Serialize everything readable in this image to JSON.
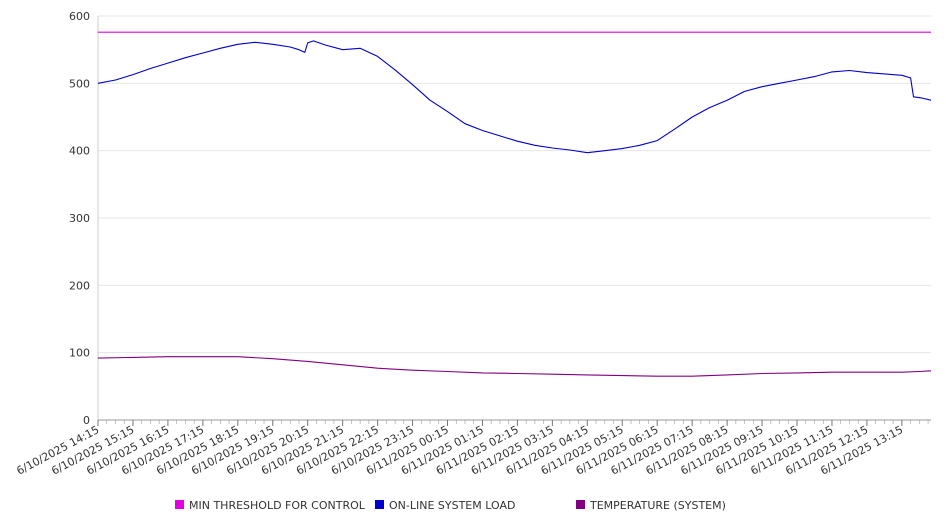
{
  "chart_data": {
    "type": "line",
    "title": "",
    "xlabel": "",
    "ylabel": "",
    "ylim": [
      0,
      600
    ],
    "yticks": [
      "0",
      "100",
      "200",
      "300",
      "400",
      "500",
      "600"
    ],
    "grid": true,
    "legend_position": "bottom",
    "xtick_labels": [
      "6/10/2025 14:15",
      "6/10/2025 15:15",
      "6/10/2025 16:15",
      "6/10/2025 17:15",
      "6/10/2025 18:15",
      "6/10/2025 19:15",
      "6/10/2025 20:15",
      "6/10/2025 21:15",
      "6/10/2025 22:15",
      "6/10/2025 23:15",
      "6/11/2025 00:15",
      "6/11/2025 01:15",
      "6/11/2025 02:15",
      "6/11/2025 03:15",
      "6/11/2025 04:15",
      "6/11/2025 05:15",
      "6/11/2025 06:15",
      "6/11/2025 07:15",
      "6/11/2025 08:15",
      "6/11/2025 09:15",
      "6/11/2025 10:15",
      "6/11/2025 11:15",
      "6/11/2025 12:15",
      "6/11/2025 13:15"
    ],
    "xlim": [
      "6/10/2025 14:15",
      "6/11/2025 14:05"
    ],
    "series": [
      {
        "name": "MIN THRESHOLD FOR CONTROL",
        "color": "#e000e0",
        "points": [
          [
            "6/10/2025 14:15",
            576
          ],
          [
            "6/11/2025 14:05",
            576
          ]
        ]
      },
      {
        "name": "ON-LINE SYSTEM LOAD",
        "color": "#0000cc",
        "points": [
          [
            "6/10/2025 14:15",
            500
          ],
          [
            "6/10/2025 14:45",
            505
          ],
          [
            "6/10/2025 15:15",
            513
          ],
          [
            "6/10/2025 15:45",
            522
          ],
          [
            "6/10/2025 16:15",
            530
          ],
          [
            "6/10/2025 16:45",
            538
          ],
          [
            "6/10/2025 17:15",
            545
          ],
          [
            "6/10/2025 17:45",
            552
          ],
          [
            "6/10/2025 18:15",
            558
          ],
          [
            "6/10/2025 18:45",
            561
          ],
          [
            "6/10/2025 19:15",
            558
          ],
          [
            "6/10/2025 19:45",
            554
          ],
          [
            "6/10/2025 20:00",
            550
          ],
          [
            "6/10/2025 20:10",
            546
          ],
          [
            "6/10/2025 20:15",
            560
          ],
          [
            "6/10/2025 20:25",
            563
          ],
          [
            "6/10/2025 20:45",
            557
          ],
          [
            "6/10/2025 21:15",
            550
          ],
          [
            "6/10/2025 21:45",
            552
          ],
          [
            "6/10/2025 22:15",
            540
          ],
          [
            "6/10/2025 22:45",
            520
          ],
          [
            "6/10/2025 23:15",
            498
          ],
          [
            "6/10/2025 23:45",
            475
          ],
          [
            "6/11/2025 00:15",
            458
          ],
          [
            "6/11/2025 00:45",
            440
          ],
          [
            "6/11/2025 01:15",
            430
          ],
          [
            "6/11/2025 01:45",
            422
          ],
          [
            "6/11/2025 02:15",
            414
          ],
          [
            "6/11/2025 02:45",
            408
          ],
          [
            "6/11/2025 03:15",
            404
          ],
          [
            "6/11/2025 03:45",
            401
          ],
          [
            "6/11/2025 04:15",
            397
          ],
          [
            "6/11/2025 04:45",
            400
          ],
          [
            "6/11/2025 05:15",
            403
          ],
          [
            "6/11/2025 05:45",
            408
          ],
          [
            "6/11/2025 06:15",
            415
          ],
          [
            "6/11/2025 06:45",
            432
          ],
          [
            "6/11/2025 07:15",
            450
          ],
          [
            "6/11/2025 07:45",
            464
          ],
          [
            "6/11/2025 08:15",
            475
          ],
          [
            "6/11/2025 08:45",
            488
          ],
          [
            "6/11/2025 09:15",
            495
          ],
          [
            "6/11/2025 09:45",
            500
          ],
          [
            "6/11/2025 10:15",
            505
          ],
          [
            "6/11/2025 10:45",
            510
          ],
          [
            "6/11/2025 11:15",
            517
          ],
          [
            "6/11/2025 11:45",
            519
          ],
          [
            "6/11/2025 12:15",
            516
          ],
          [
            "6/11/2025 12:45",
            514
          ],
          [
            "6/11/2025 13:15",
            512
          ],
          [
            "6/11/2025 13:30",
            508
          ],
          [
            "6/11/2025 13:35",
            480
          ],
          [
            "6/11/2025 13:50",
            478
          ],
          [
            "6/11/2025 14:05",
            475
          ]
        ]
      },
      {
        "name": "TEMPERATURE (SYSTEM)",
        "color": "#800080",
        "points": [
          [
            "6/10/2025 14:15",
            92
          ],
          [
            "6/10/2025 15:15",
            93
          ],
          [
            "6/10/2025 16:15",
            94
          ],
          [
            "6/10/2025 17:15",
            94
          ],
          [
            "6/10/2025 18:15",
            94
          ],
          [
            "6/10/2025 19:15",
            91
          ],
          [
            "6/10/2025 20:15",
            87
          ],
          [
            "6/10/2025 21:15",
            82
          ],
          [
            "6/10/2025 22:15",
            77
          ],
          [
            "6/10/2025 23:15",
            74
          ],
          [
            "6/11/2025 00:15",
            72
          ],
          [
            "6/11/2025 01:15",
            70
          ],
          [
            "6/11/2025 02:15",
            69
          ],
          [
            "6/11/2025 03:15",
            68
          ],
          [
            "6/11/2025 04:15",
            67
          ],
          [
            "6/11/2025 05:15",
            66
          ],
          [
            "6/11/2025 06:15",
            65
          ],
          [
            "6/11/2025 07:15",
            65
          ],
          [
            "6/11/2025 08:15",
            67
          ],
          [
            "6/11/2025 09:15",
            69
          ],
          [
            "6/11/2025 10:15",
            70
          ],
          [
            "6/11/2025 11:15",
            71
          ],
          [
            "6/11/2025 12:15",
            71
          ],
          [
            "6/11/2025 13:15",
            71
          ],
          [
            "6/11/2025 13:45",
            72
          ],
          [
            "6/11/2025 14:05",
            73
          ]
        ]
      }
    ]
  }
}
